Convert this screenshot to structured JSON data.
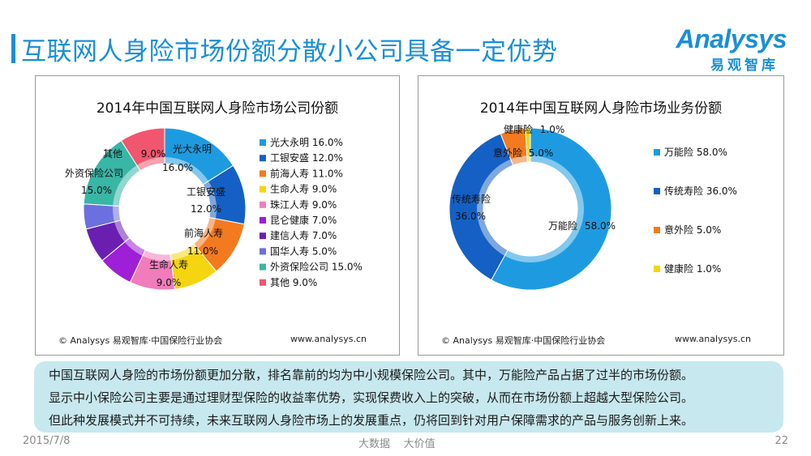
{
  "page": {
    "title": "互联网人身险市场份额分散小公司具备一定优势",
    "logo_main": "Analysys",
    "logo_sub": "易观智库"
  },
  "summary": [
    "中国互联网人身险的市场份额更加分散，排名靠前的均为中小规模保险公司。其中，万能险产品占据了过半的市场份额。",
    "显示中小保险公司主要是通过理财型保险的收益率优势，实现保费收入上的突破，从而在市场份额上超越大型保险公司。",
    "但此种发展模式并不可持续，未来互联网人身险市场上的发展重点，仍将回到针对用户保障需求的产品与服务创新上来。"
  ],
  "footer": {
    "date": "2015/7/8",
    "slogan": "大数据    大价值",
    "page_number": "22"
  },
  "chart_data": [
    {
      "type": "pie",
      "donut": true,
      "title": "2014年中国互联网人身险市场公司份额",
      "source": "© Analysys 易观智库·中国保险行业协会",
      "site": "www.analysys.cn",
      "legend_position": "right",
      "unit": "%",
      "slices": [
        {
          "name": "光大永明",
          "value": 16.0,
          "label": "16.0%",
          "color": "#1e9be0"
        },
        {
          "name": "工银安盛",
          "value": 12.0,
          "label": "12.0%",
          "color": "#1560c4"
        },
        {
          "name": "前海人寿",
          "value": 11.0,
          "label": "11.0%",
          "color": "#f47a20"
        },
        {
          "name": "生命人寿",
          "value": 9.0,
          "label": "9.0%",
          "color": "#f5d50f"
        },
        {
          "name": "珠江人寿",
          "value": 9.0,
          "label": "9.0%",
          "color": "#f07cbc"
        },
        {
          "name": "昆仑健康",
          "value": 7.0,
          "label": "7.0%",
          "color": "#9d1fd6"
        },
        {
          "name": "建信人寿",
          "value": 7.0,
          "label": "7.0%",
          "color": "#6a1fb0"
        },
        {
          "name": "国华人寿",
          "value": 5.0,
          "label": "5.0%",
          "color": "#6b6fe0"
        },
        {
          "name": "外资保险公司",
          "value": 15.0,
          "label": "15.0%",
          "color": "#38b6a6"
        },
        {
          "name": "其他",
          "value": 9.0,
          "label": "9.0%",
          "color": "#f0566e"
        }
      ]
    },
    {
      "type": "pie",
      "donut": true,
      "title": "2014年中国互联网人身险市场业务份额",
      "source": "© Analysys 易观智库·中国保险行业协会",
      "site": "www.analysys.cn",
      "legend_position": "right",
      "unit": "%",
      "slices": [
        {
          "name": "万能险",
          "value": 58.0,
          "label": "58.0%",
          "color": "#1e9be0"
        },
        {
          "name": "传统寿险",
          "value": 36.0,
          "label": "36.0%",
          "color": "#1560c4"
        },
        {
          "name": "意外险",
          "value": 5.0,
          "label": "5.0%",
          "color": "#f47a20"
        },
        {
          "name": "健康险",
          "value": 1.0,
          "label": "1.0%",
          "color": "#f5d50f"
        }
      ]
    }
  ]
}
